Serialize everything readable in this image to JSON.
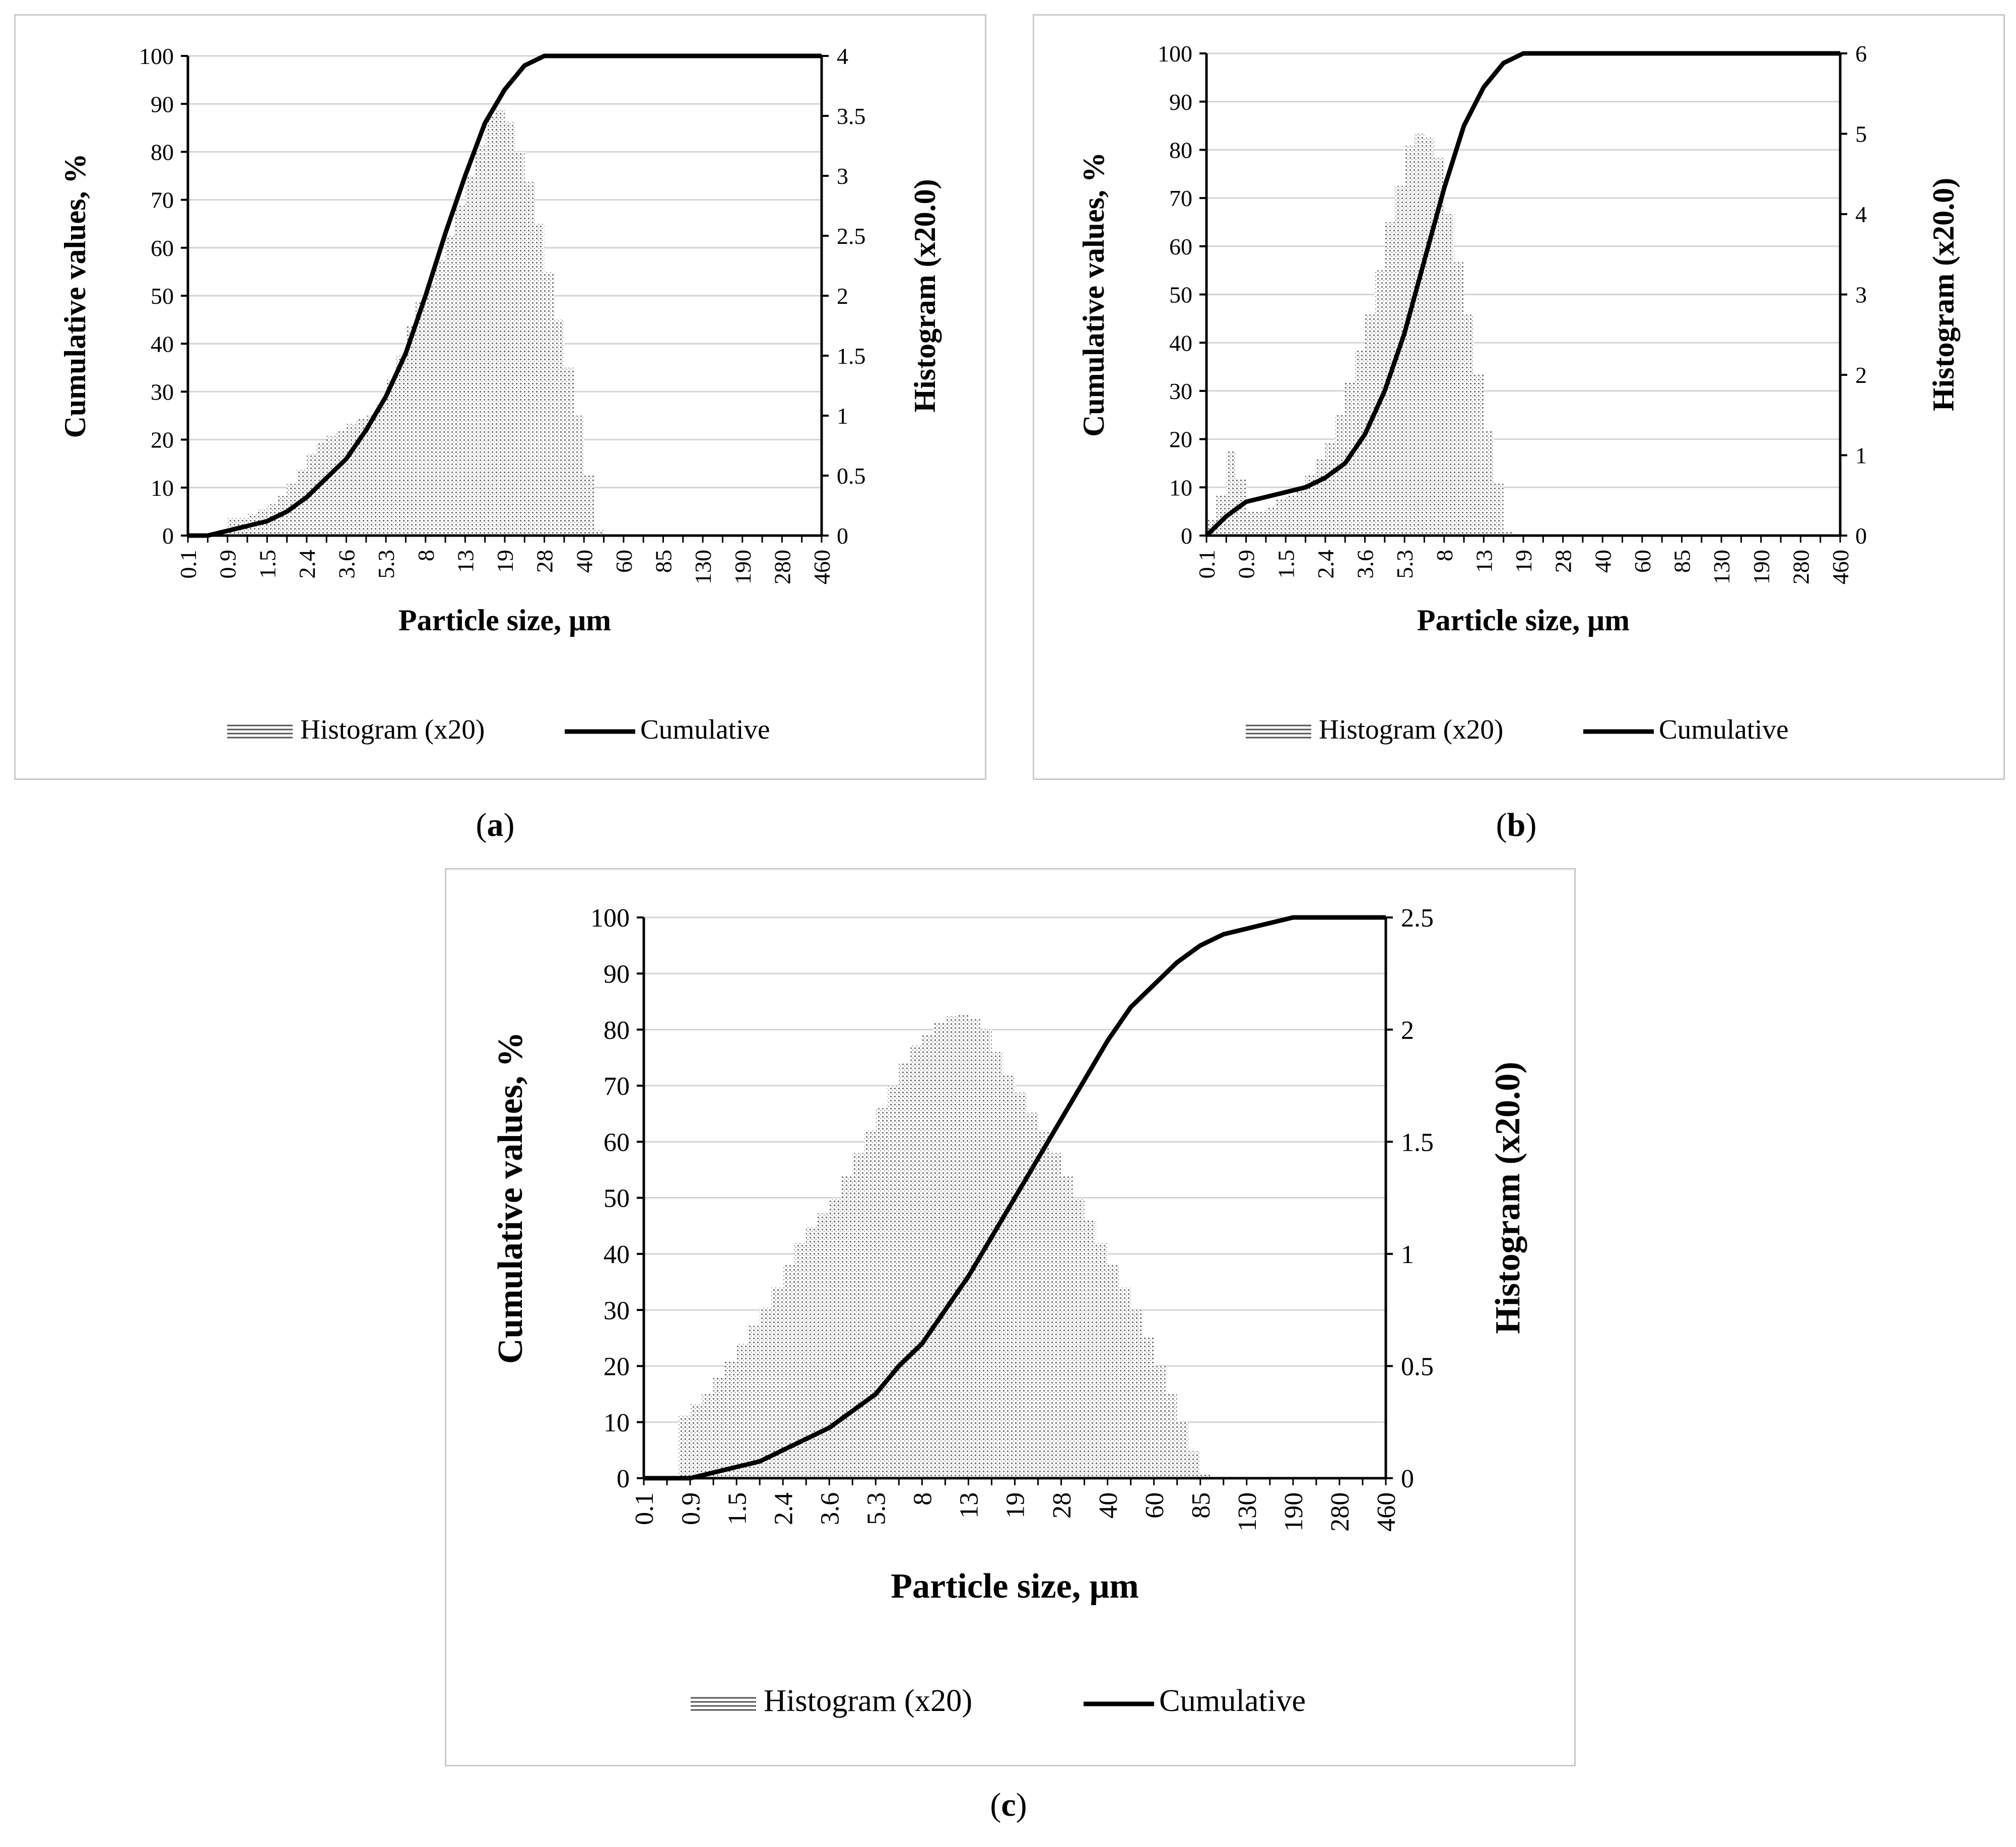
{
  "chart_data": [
    {
      "panel": "a",
      "type": "bar+line",
      "title": "",
      "xlabel": "Particle size,  μm",
      "ylabel": "Cumulative values, %",
      "y2label": "Histogram (x20.0)",
      "ylim": [
        0,
        100
      ],
      "y2lim": [
        0,
        4
      ],
      "yticks": [
        "0",
        "10",
        "20",
        "30",
        "40",
        "50",
        "60",
        "70",
        "80",
        "90",
        "100"
      ],
      "y2ticks": [
        "0",
        "0.5",
        "1",
        "1.5",
        "2",
        "2.5",
        "3",
        "3.5",
        "4"
      ],
      "xticks": [
        "0.1",
        "0.9",
        "1.5",
        "2.4",
        "3.6",
        "5.3",
        "8",
        "13",
        "19",
        "28",
        "40",
        "60",
        "85",
        "130",
        "190",
        "280",
        "460"
      ],
      "legend": [
        "Histogram (x20)",
        "Cumulative"
      ],
      "histogram_x": [
        0.0,
        0.25,
        0.5,
        0.75,
        1.0,
        1.25,
        1.5,
        1.75,
        2.0,
        2.25,
        2.5,
        2.75,
        3.0,
        3.25,
        3.5,
        3.75,
        4.0,
        4.25,
        4.5,
        4.75,
        5.0,
        5.25,
        5.5,
        5.75,
        6.0,
        6.25,
        6.5,
        6.75,
        7.0,
        7.25,
        7.5,
        7.75,
        8.0,
        8.25,
        8.5,
        8.75,
        9.0,
        9.25,
        9.5,
        9.75,
        10.0,
        10.25,
        10.5,
        10.75,
        11.0,
        11.25,
        11.5,
        11.75,
        12.0,
        12.25,
        12.5,
        12.75,
        13.0,
        13.25,
        13.5,
        13.75,
        14.0
      ],
      "histogram_values": [
        0,
        0,
        0,
        0.05,
        0.15,
        0.15,
        0.18,
        0.22,
        0.26,
        0.33,
        0.43,
        0.55,
        0.68,
        0.78,
        0.83,
        0.88,
        0.93,
        0.98,
        1.0,
        1.1,
        1.3,
        1.5,
        1.75,
        1.95,
        2.1,
        2.3,
        2.5,
        2.75,
        3.0,
        3.25,
        3.5,
        3.55,
        3.45,
        3.2,
        2.95,
        2.6,
        2.2,
        1.8,
        1.4,
        1.0,
        0.5,
        0.05,
        0,
        0,
        0,
        0,
        0,
        0,
        0,
        0,
        0,
        0,
        0,
        0,
        0,
        0,
        0
      ],
      "cumulative_x": [
        0.0,
        0.5,
        1.0,
        1.5,
        2.0,
        2.5,
        3.0,
        3.5,
        4.0,
        4.5,
        5.0,
        5.5,
        6.0,
        6.5,
        7.0,
        7.5,
        8.0,
        8.5,
        9.0,
        9.5,
        10.0,
        10.25,
        10.5,
        11.0,
        16.0
      ],
      "cumulative_values": [
        0,
        0,
        1,
        2,
        3,
        5,
        8,
        12,
        16,
        22,
        29,
        38,
        50,
        63,
        75,
        86,
        93,
        98,
        100,
        100,
        100,
        100,
        100,
        100,
        100
      ]
    },
    {
      "panel": "b",
      "type": "bar+line",
      "title": "",
      "xlabel": "Particle size,  μm",
      "ylabel": "Cumulative values, %",
      "y2label": "Histogram (x20.0)",
      "ylim": [
        0,
        100
      ],
      "y2lim": [
        0,
        6
      ],
      "yticks": [
        "0",
        "10",
        "20",
        "30",
        "40",
        "50",
        "60",
        "70",
        "80",
        "90",
        "100"
      ],
      "y2ticks": [
        "0",
        "1",
        "2",
        "3",
        "4",
        "5",
        "6"
      ],
      "xticks": [
        "0.1",
        "0.9",
        "1.5",
        "2.4",
        "3.6",
        "5.3",
        "8",
        "13",
        "19",
        "28",
        "40",
        "60",
        "85",
        "130",
        "190",
        "280",
        "460"
      ],
      "legend": [
        "Histogram (x20)",
        "Cumulative"
      ],
      "histogram_x": [
        0.0,
        0.25,
        0.5,
        0.75,
        1.0,
        1.25,
        1.5,
        1.75,
        2.0,
        2.25,
        2.5,
        2.75,
        3.0,
        3.25,
        3.5,
        3.75,
        4.0,
        4.25,
        4.5,
        4.75,
        5.0,
        5.25,
        5.5,
        5.75,
        6.0,
        6.25,
        6.5,
        6.75,
        7.0,
        7.25,
        7.5,
        7.75,
        8.0,
        8.25,
        8.5,
        8.75,
        9.0,
        9.25,
        9.5,
        9.75,
        10.0,
        10.25,
        10.5,
        16.0
      ],
      "histogram_values": [
        0.2,
        0.5,
        1.05,
        0.7,
        0.3,
        0.3,
        0.35,
        0.45,
        0.5,
        0.6,
        0.75,
        0.95,
        1.15,
        1.5,
        1.9,
        2.3,
        2.75,
        3.3,
        3.9,
        4.35,
        4.85,
        5.0,
        4.95,
        4.7,
        4.0,
        3.4,
        2.75,
        2.0,
        1.3,
        0.65,
        0.05,
        0,
        0,
        0,
        0,
        0,
        0,
        0,
        0,
        0,
        0,
        0,
        0,
        0
      ],
      "cumulative_x": [
        0.0,
        0.5,
        1.0,
        1.5,
        2.0,
        2.5,
        3.0,
        3.5,
        4.0,
        4.5,
        5.0,
        5.5,
        6.0,
        6.5,
        7.0,
        7.5,
        8.0,
        8.5,
        9.0,
        9.5,
        16.0
      ],
      "cumulative_values": [
        0,
        4,
        7,
        8,
        9,
        10,
        12,
        15,
        21,
        30,
        42,
        57,
        72,
        85,
        93,
        98,
        100,
        100,
        100,
        100,
        100
      ]
    },
    {
      "panel": "c",
      "type": "bar+line",
      "title": "",
      "xlabel": "Particle size,  μm",
      "ylabel": "Cumulative values, %",
      "y2label": "Histogram (x20.0)",
      "ylim": [
        0,
        100
      ],
      "y2lim": [
        0,
        2.5
      ],
      "yticks": [
        "0",
        "10",
        "20",
        "30",
        "40",
        "50",
        "60",
        "70",
        "80",
        "90",
        "100"
      ],
      "y2ticks": [
        "0",
        "0.5",
        "1",
        "1.5",
        "2",
        "2.5"
      ],
      "xticks": [
        "0.1",
        "0.9",
        "1.5",
        "2.4",
        "3.6",
        "5.3",
        "8",
        "13",
        "19",
        "28",
        "40",
        "60",
        "85",
        "130",
        "190",
        "280",
        "460"
      ],
      "legend": [
        "Histogram (x20)",
        "Cumulative"
      ],
      "histogram_x": [
        0.0,
        0.25,
        0.5,
        0.75,
        1.0,
        1.25,
        1.5,
        1.75,
        2.0,
        2.25,
        2.5,
        2.75,
        3.0,
        3.25,
        3.5,
        3.75,
        4.0,
        4.25,
        4.5,
        4.75,
        5.0,
        5.25,
        5.5,
        5.75,
        6.0,
        6.25,
        6.5,
        6.75,
        7.0,
        7.25,
        7.5,
        7.75,
        8.0,
        8.25,
        8.5,
        8.75,
        9.0,
        9.25,
        9.5,
        9.75,
        10.0,
        10.25,
        10.5,
        10.75,
        11.0,
        11.25,
        11.5,
        11.75,
        12.0,
        12.25,
        12.5,
        12.75,
        13.0,
        13.25,
        13.5,
        13.75,
        14.0,
        14.25,
        14.5,
        14.75,
        15.0,
        15.25,
        15.5,
        16.0
      ],
      "histogram_values": [
        0,
        0,
        0,
        0.28,
        0.33,
        0.38,
        0.45,
        0.52,
        0.6,
        0.68,
        0.76,
        0.85,
        0.95,
        1.05,
        1.12,
        1.18,
        1.25,
        1.35,
        1.45,
        1.55,
        1.65,
        1.75,
        1.85,
        1.93,
        1.98,
        2.03,
        2.06,
        2.07,
        2.05,
        2.0,
        1.9,
        1.8,
        1.72,
        1.63,
        1.55,
        1.45,
        1.35,
        1.25,
        1.15,
        1.05,
        0.95,
        0.85,
        0.75,
        0.63,
        0.5,
        0.38,
        0.25,
        0.12,
        0.02,
        0,
        0,
        0,
        0,
        0,
        0,
        0,
        0,
        0,
        0,
        0,
        0,
        0,
        0,
        0
      ],
      "cumulative_x": [
        0.0,
        0.5,
        1.0,
        1.5,
        2.0,
        2.5,
        3.0,
        3.5,
        4.0,
        4.5,
        5.0,
        5.5,
        6.0,
        6.5,
        7.0,
        7.5,
        8.0,
        8.5,
        9.0,
        9.5,
        10.0,
        10.5,
        11.0,
        11.5,
        12.0,
        12.5,
        13.0,
        13.5,
        14.0,
        14.5,
        15.0,
        16.0
      ],
      "cumulative_values": [
        0,
        0,
        0,
        1,
        2,
        3,
        5,
        7,
        9,
        12,
        15,
        20,
        24,
        30,
        36,
        43,
        50,
        57,
        64,
        71,
        78,
        84,
        88,
        92,
        95,
        97,
        98,
        99,
        100,
        100,
        100,
        100
      ]
    }
  ],
  "captions": {
    "a": "a",
    "b": "b",
    "c": "c"
  }
}
